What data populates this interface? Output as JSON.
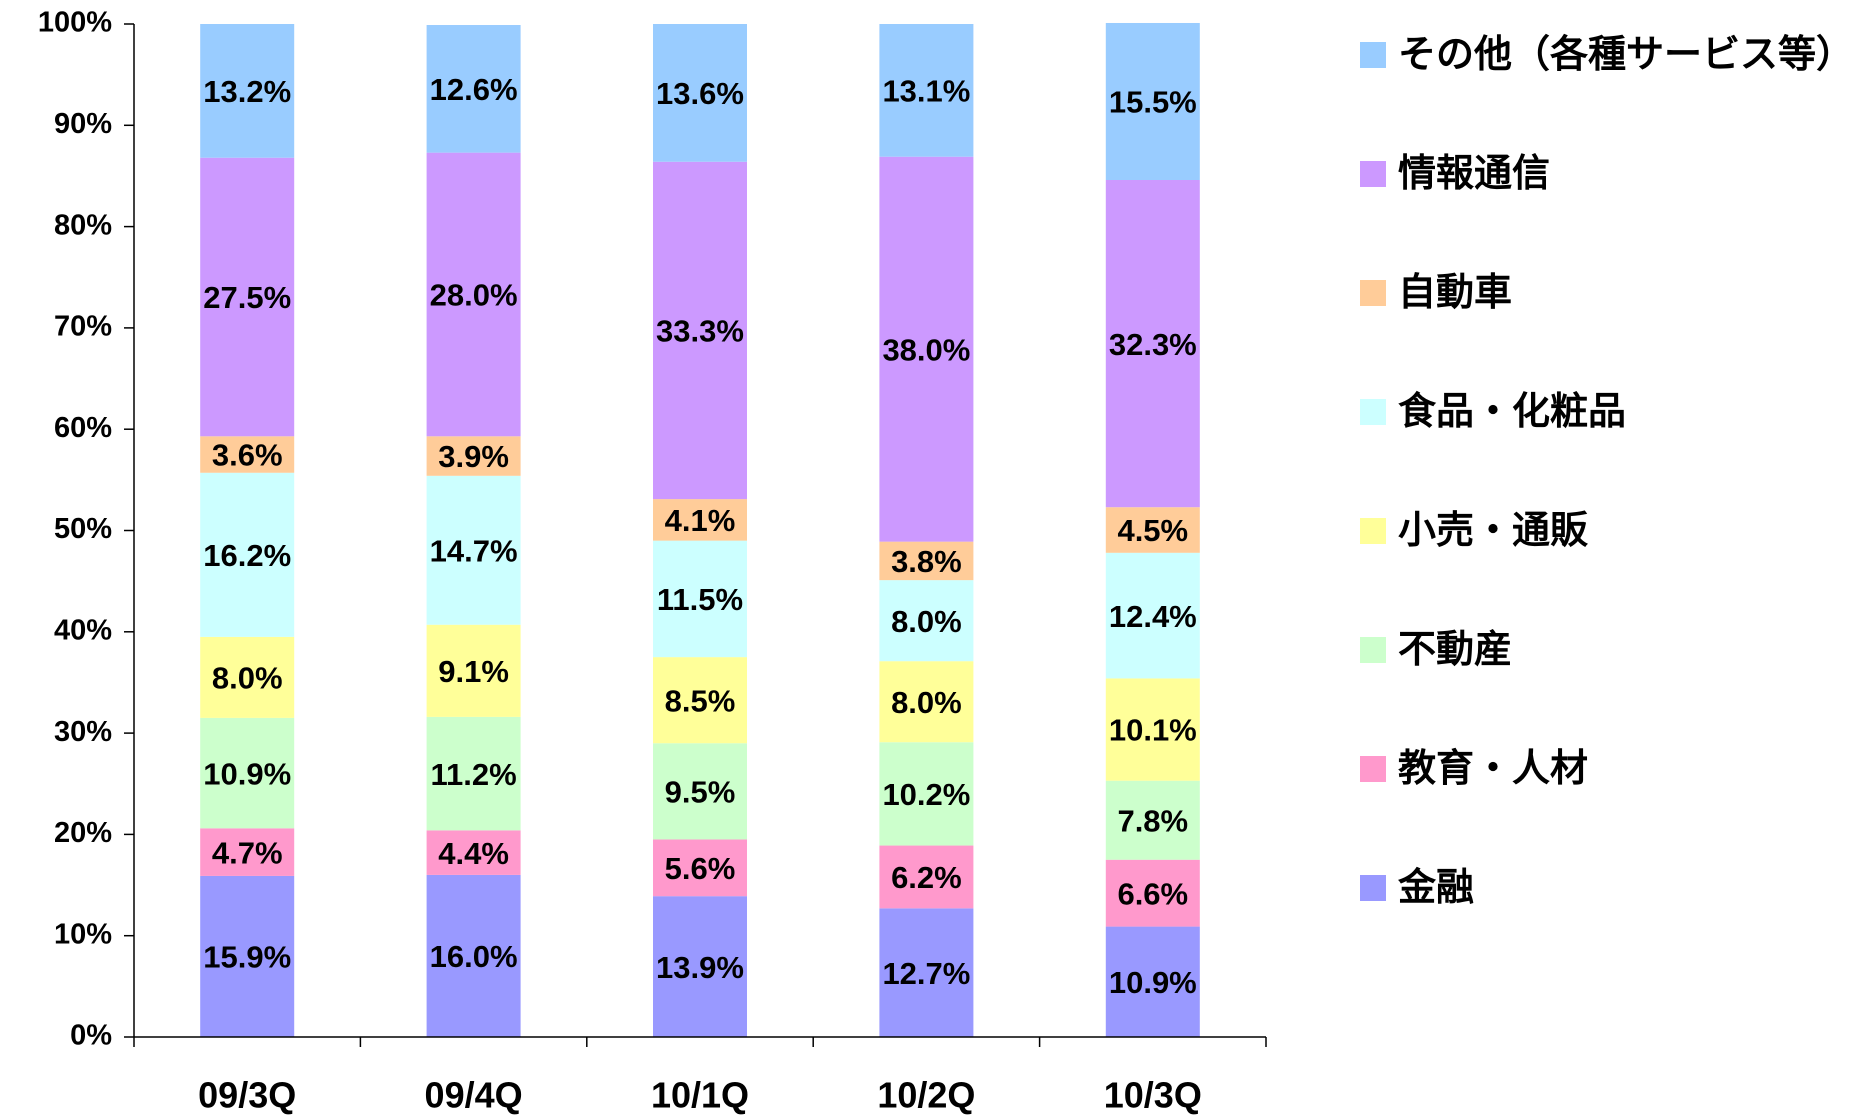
{
  "chart_data": {
    "type": "stacked_bar",
    "categories": [
      "09/3Q",
      "09/4Q",
      "10/1Q",
      "10/2Q",
      "10/3Q"
    ],
    "series": [
      {
        "name": "金融",
        "color": "#9999ff",
        "values": [
          15.9,
          16.0,
          13.9,
          12.7,
          10.9
        ],
        "value_labels": [
          "15.9%",
          "16.0%",
          "13.9%",
          "12.7%",
          "10.9%"
        ]
      },
      {
        "name": "教育・人材",
        "color": "#ff99cc",
        "values": [
          4.7,
          4.4,
          5.6,
          6.2,
          6.6
        ],
        "value_labels": [
          "4.7%",
          "4.4%",
          "5.6%",
          "6.2%",
          "6.6%"
        ]
      },
      {
        "name": "不動産",
        "color": "#ccffcc",
        "values": [
          10.9,
          11.2,
          9.5,
          10.2,
          7.8
        ],
        "value_labels": [
          "10.9%",
          "11.2%",
          "9.5%",
          "10.2%",
          "7.8%"
        ]
      },
      {
        "name": "小売・通販",
        "color": "#ffff99",
        "values": [
          8.0,
          9.1,
          8.5,
          8.0,
          10.1
        ],
        "value_labels": [
          "8.0%",
          "9.1%",
          "8.5%",
          "8.0%",
          "10.1%"
        ]
      },
      {
        "name": "食品・化粧品",
        "color": "#ccffff",
        "values": [
          16.2,
          14.7,
          11.5,
          8.0,
          12.4
        ],
        "value_labels": [
          "16.2%",
          "14.7%",
          "11.5%",
          "8.0%",
          "12.4%"
        ]
      },
      {
        "name": "自動車",
        "color": "#ffcc99",
        "values": [
          3.6,
          3.9,
          4.1,
          3.8,
          4.5
        ],
        "value_labels": [
          "3.6%",
          "3.9%",
          "4.1%",
          "3.8%",
          "4.5%"
        ]
      },
      {
        "name": "情報通信",
        "color": "#cc99ff",
        "values": [
          27.5,
          28.0,
          33.3,
          38.0,
          32.3
        ],
        "value_labels": [
          "27.5%",
          "28.0%",
          "33.3%",
          "38.0%",
          "32.3%"
        ]
      },
      {
        "name": "その他（各種サービス等）",
        "color": "#99ccff",
        "values": [
          13.2,
          12.6,
          13.6,
          13.1,
          15.5
        ],
        "value_labels": [
          "13.2%",
          "12.6%",
          "13.6%",
          "13.1%",
          "15.5%"
        ]
      }
    ],
    "ylim": [
      0,
      100
    ],
    "yticks": [
      {
        "value": 0,
        "label": "0%"
      },
      {
        "value": 10,
        "label": "10%"
      },
      {
        "value": 20,
        "label": "20%"
      },
      {
        "value": 30,
        "label": "30%"
      },
      {
        "value": 40,
        "label": "40%"
      },
      {
        "value": 50,
        "label": "50%"
      },
      {
        "value": 60,
        "label": "60%"
      },
      {
        "value": 70,
        "label": "70%"
      },
      {
        "value": 80,
        "label": "80%"
      },
      {
        "value": 90,
        "label": "90%"
      },
      {
        "value": 100,
        "label": "100%"
      }
    ],
    "grid": false,
    "legend": "right"
  }
}
